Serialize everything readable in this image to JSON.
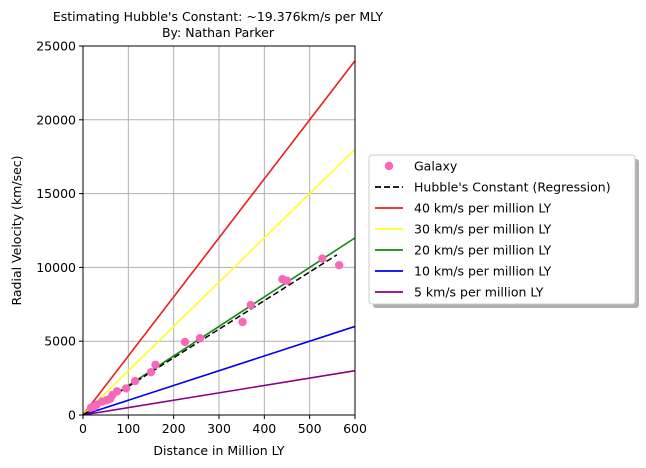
{
  "chart_data": {
    "type": "scatter",
    "title": "Estimating Hubble's Constant: ~19.376km/s per MLY",
    "subtitle": "By: Nathan Parker",
    "xlabel": "Distance in Million LY",
    "ylabel": "Radial Velocity (km/sec)",
    "xlim": [
      0,
      600
    ],
    "ylim": [
      0,
      25000
    ],
    "xticks": [
      0,
      100,
      200,
      300,
      400,
      500,
      600
    ],
    "yticks": [
      0,
      5000,
      10000,
      15000,
      20000,
      25000
    ],
    "grid": true,
    "legend_position": "right",
    "scatter": {
      "name": "Galaxy",
      "color": "#f768b8",
      "points": [
        {
          "x": 18,
          "y": 500
        },
        {
          "x": 24,
          "y": 550
        },
        {
          "x": 30,
          "y": 700
        },
        {
          "x": 42,
          "y": 900
        },
        {
          "x": 52,
          "y": 1000
        },
        {
          "x": 60,
          "y": 1100
        },
        {
          "x": 65,
          "y": 1350
        },
        {
          "x": 75,
          "y": 1600
        },
        {
          "x": 95,
          "y": 1800
        },
        {
          "x": 115,
          "y": 2300
        },
        {
          "x": 150,
          "y": 2900
        },
        {
          "x": 160,
          "y": 3400
        },
        {
          "x": 225,
          "y": 4950
        },
        {
          "x": 258,
          "y": 5200
        },
        {
          "x": 352,
          "y": 6300
        },
        {
          "x": 370,
          "y": 7450
        },
        {
          "x": 440,
          "y": 9200
        },
        {
          "x": 450,
          "y": 9100
        },
        {
          "x": 528,
          "y": 10600
        },
        {
          "x": 565,
          "y": 10150
        }
      ]
    },
    "lines": [
      {
        "name": "Hubble's Constant (Regression)",
        "slope": 19.376,
        "x_end": 560,
        "color": "#000000",
        "dashed": true
      },
      {
        "name": "40 km/s per million LY",
        "slope": 40,
        "x_end": 600,
        "color": "#ee1c1c",
        "dashed": false
      },
      {
        "name": "30 km/s per million LY",
        "slope": 30,
        "x_end": 600,
        "color": "#ffff22",
        "dashed": false
      },
      {
        "name": "20 km/s per million LY",
        "slope": 20,
        "x_end": 600,
        "color": "#118811",
        "dashed": false
      },
      {
        "name": "10 km/s per million LY",
        "slope": 10,
        "x_end": 600,
        "color": "#0000ee",
        "dashed": false
      },
      {
        "name": "5 km/s per million LY",
        "slope": 5,
        "x_end": 600,
        "color": "#880088",
        "dashed": false
      }
    ]
  }
}
